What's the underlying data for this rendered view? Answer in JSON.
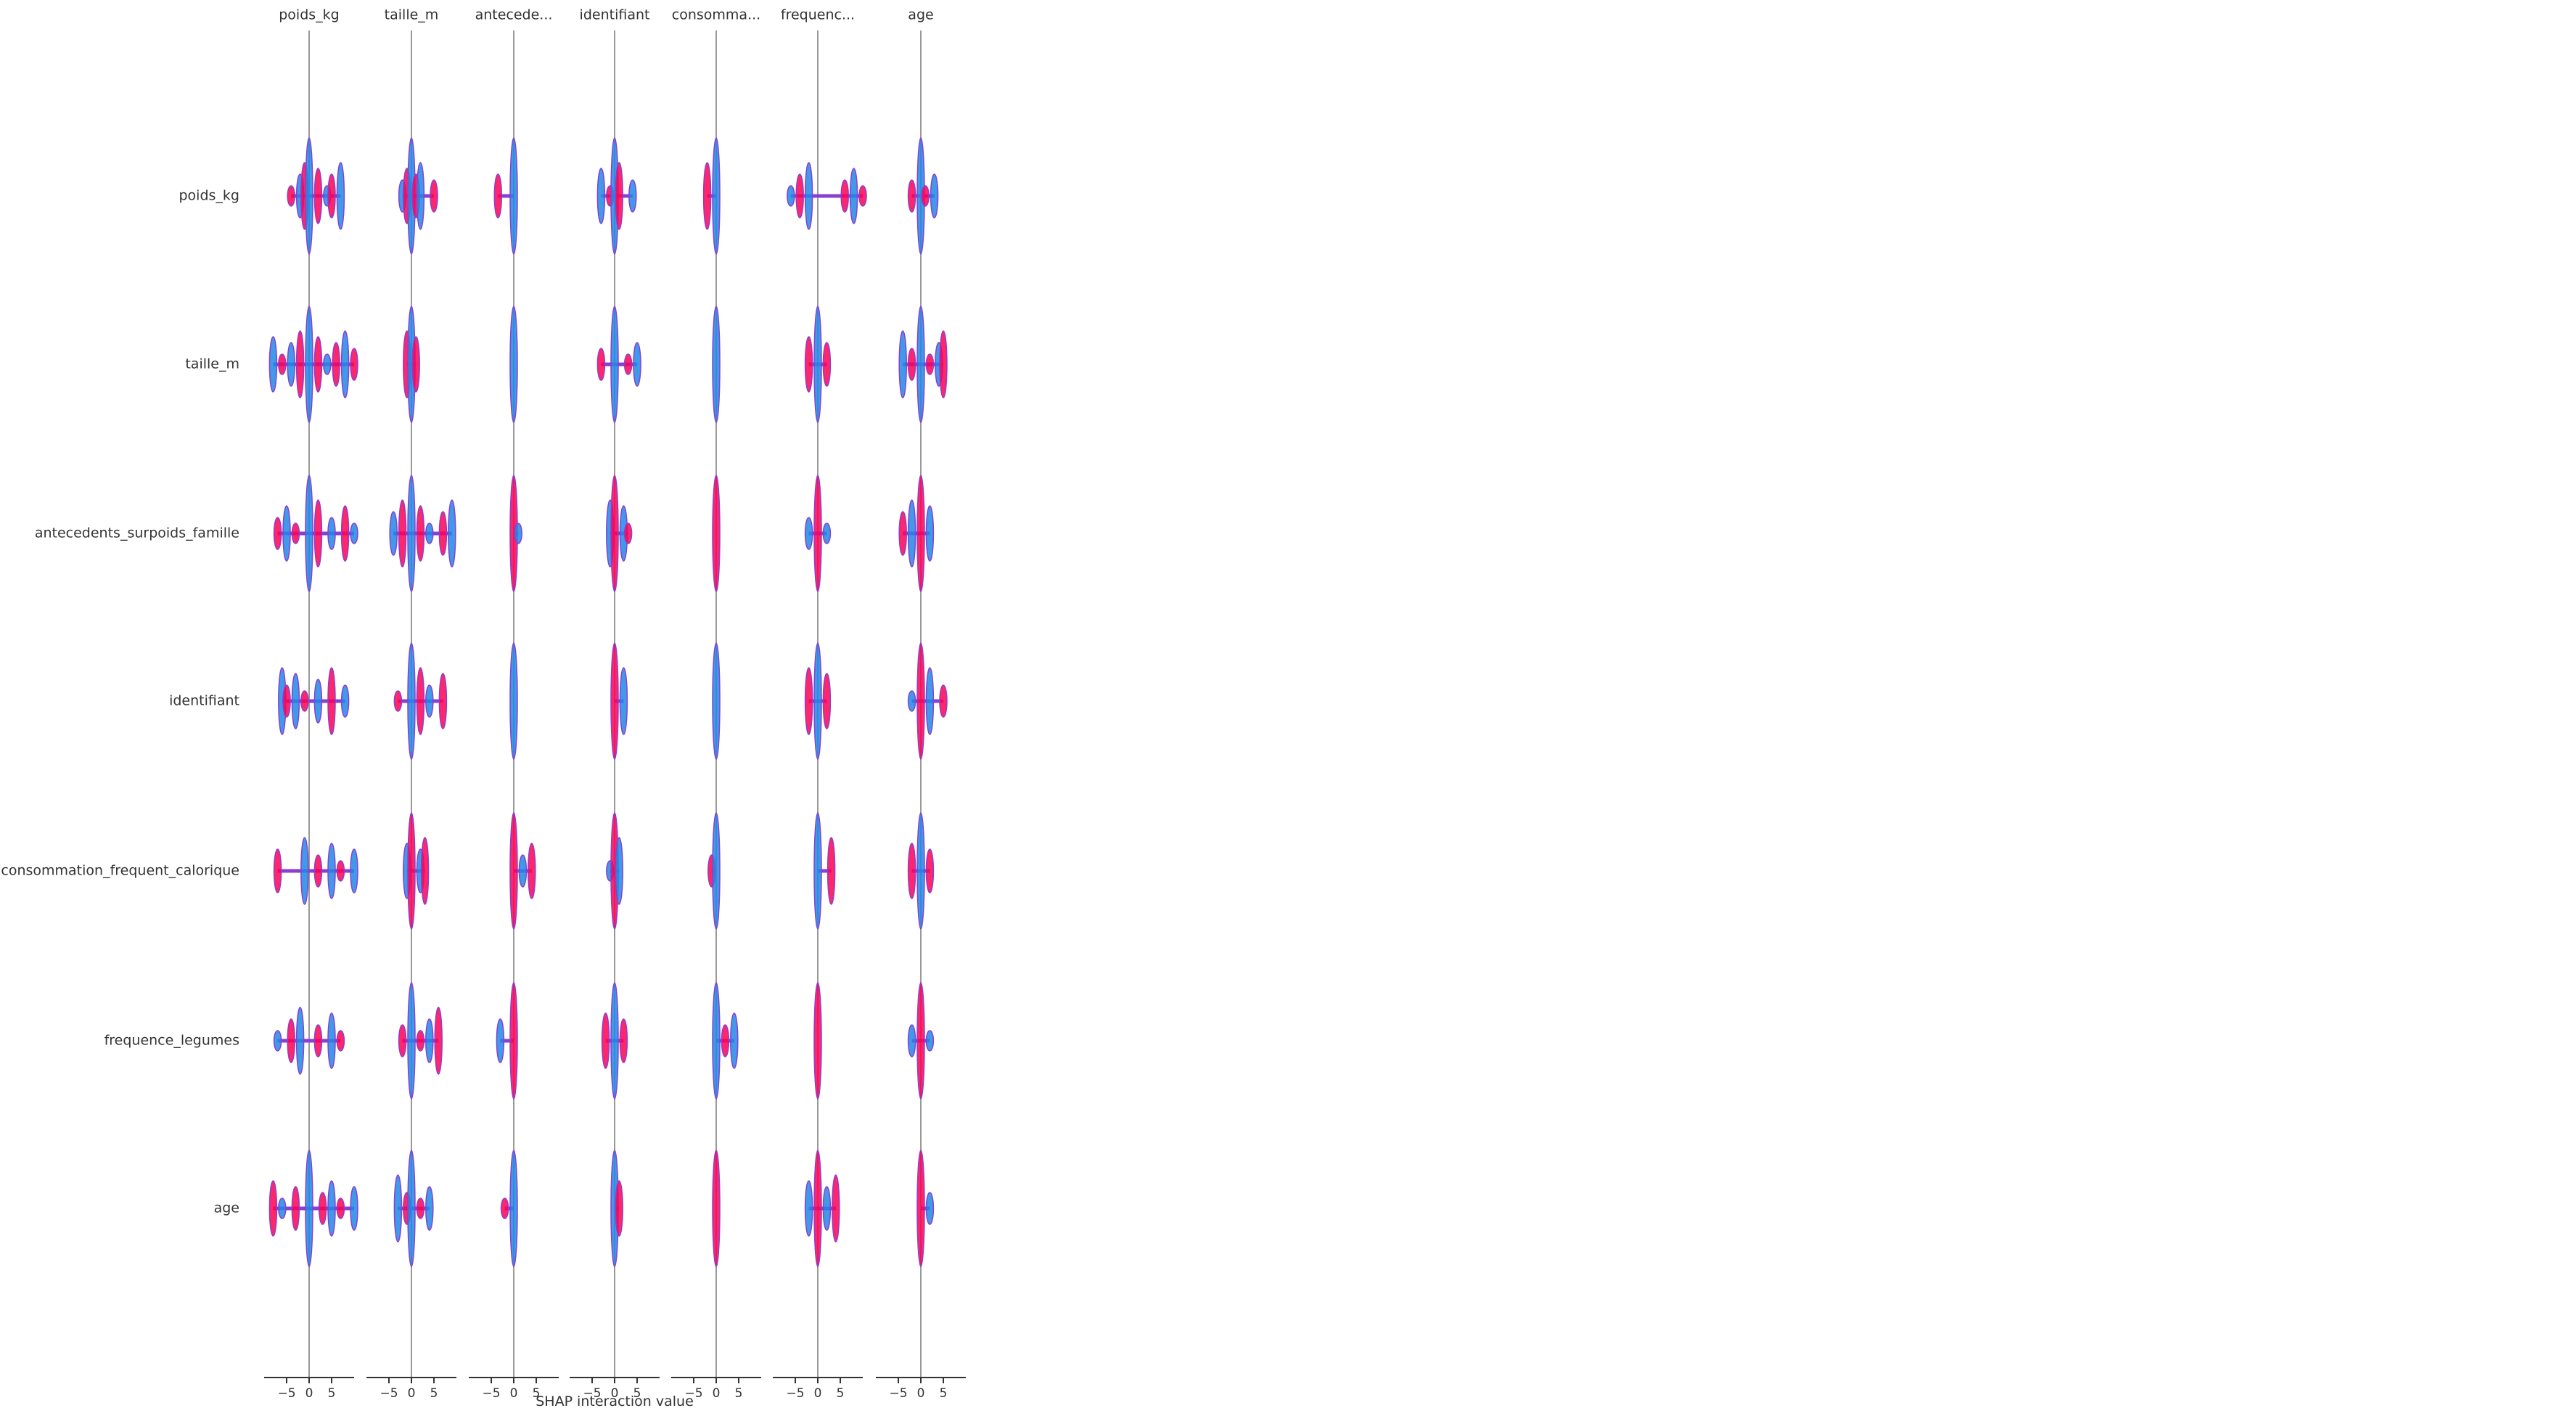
{
  "chart_data": {
    "type": "shap_interaction",
    "xlabel": "SHAP interaction value",
    "column_titles": [
      "poids_kg",
      "taille_m",
      "antecede...",
      "identifiant",
      "consomma...",
      "frequenc...",
      "age"
    ],
    "row_labels": [
      "poids_kg",
      "taille_m",
      "antecedents_surpoids_famille",
      "identifiant",
      "consommation_frequent_calorique",
      "frequence_legumes",
      "age"
    ],
    "xlim": [
      -10,
      10
    ],
    "xticks": [
      {
        "value": -5,
        "label": "−5"
      },
      0,
      5
    ],
    "colors": [
      "#ff0052",
      "#1e88e5"
    ],
    "cells": [
      [
        [
          -4,
          -2,
          -1,
          0,
          2,
          4,
          5,
          7
        ],
        [
          -2,
          -1,
          0,
          1,
          2,
          5
        ],
        [
          -3.5,
          0
        ],
        [
          -3,
          -1,
          0,
          1,
          4
        ],
        [
          -2,
          0
        ],
        [
          -6,
          -4,
          -2,
          6,
          8,
          10
        ],
        [
          -2,
          0,
          1,
          3
        ]
      ],
      [
        [
          -8,
          -6,
          -4,
          -2,
          0,
          2,
          4,
          6,
          8,
          10
        ],
        [
          -1,
          0,
          1
        ],
        [
          0
        ],
        [
          -3,
          0,
          3,
          5
        ],
        [
          0
        ],
        [
          -2,
          0,
          2
        ],
        [
          -4,
          -2,
          0,
          2,
          4,
          5
        ]
      ],
      [
        [
          -7,
          -5,
          -3,
          0,
          2,
          5,
          8,
          10
        ],
        [
          -4,
          -2,
          0,
          2,
          4,
          7,
          9
        ],
        [
          0,
          1
        ],
        [
          -1,
          0,
          2,
          3
        ],
        [
          0
        ],
        [
          -2,
          0,
          2
        ],
        [
          -4,
          -2,
          0,
          2
        ]
      ],
      [
        [
          -6,
          -5,
          -3,
          -1,
          2,
          5,
          8
        ],
        [
          -3,
          0,
          2,
          4,
          7
        ],
        [
          0
        ],
        [
          0,
          2
        ],
        [
          0
        ],
        [
          -2,
          0,
          2
        ],
        [
          -2,
          0,
          2,
          5
        ]
      ],
      [
        [
          -7,
          -1,
          2,
          5,
          7,
          10
        ],
        [
          -1,
          0,
          2,
          3
        ],
        [
          0,
          2,
          4
        ],
        [
          -1,
          0,
          1
        ],
        [
          -1,
          0
        ],
        [
          0,
          3
        ],
        [
          -2,
          0,
          2
        ]
      ],
      [
        [
          -7,
          -4,
          -2,
          2,
          5,
          7
        ],
        [
          -2,
          0,
          2,
          4,
          6
        ],
        [
          -3,
          0
        ],
        [
          -2,
          0,
          2
        ],
        [
          0,
          2,
          4
        ],
        [
          0
        ],
        [
          -2,
          0,
          2
        ]
      ],
      [
        [
          -8,
          -6,
          -3,
          0,
          3,
          5,
          7,
          10
        ],
        [
          -3,
          -1,
          0,
          2,
          4
        ],
        [
          -2,
          0
        ],
        [
          0,
          1
        ],
        [
          0
        ],
        [
          -2,
          0,
          2,
          4
        ],
        [
          0,
          2
        ]
      ]
    ]
  }
}
